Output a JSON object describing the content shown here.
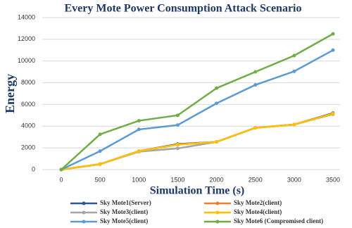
{
  "chart_data": {
    "type": "line",
    "title": "Every Mote Power Consumption Attack Scenario",
    "x_label": "Simulation Time (s)",
    "y_label": "Energy",
    "x": [
      0,
      500,
      1000,
      1500,
      2000,
      2500,
      3000,
      3500
    ],
    "series": [
      {
        "name": "Sky Mote1(Server)",
        "color": "#2f5597",
        "values": [
          0,
          500,
          1700,
          2350,
          2550,
          3850,
          4150,
          5200
        ]
      },
      {
        "name": "Sky Mote2(client)",
        "color": "#ed7d31",
        "values": [
          0,
          500,
          1700,
          2300,
          2550,
          3850,
          4150,
          5150
        ]
      },
      {
        "name": "Sky Mote3(client)",
        "color": "#a5a5a5",
        "values": [
          0,
          500,
          1650,
          1950,
          2550,
          3850,
          4150,
          5100
        ]
      },
      {
        "name": "Sky Mote4(client)",
        "color": "#ffc000",
        "values": [
          0,
          500,
          1700,
          2300,
          2550,
          3850,
          4150,
          5150
        ]
      },
      {
        "name": "Sky Mote5(client)",
        "color": "#5b9bd5",
        "values": [
          0,
          1700,
          3700,
          4100,
          6100,
          7800,
          9050,
          11000
        ]
      },
      {
        "name": "Sky Mote6 (Compromised client)",
        "color": "#70ad47",
        "values": [
          0,
          3250,
          4500,
          5000,
          7500,
          9000,
          10500,
          12500
        ]
      }
    ],
    "xlim": [
      0,
      3500
    ],
    "xticks": [
      0,
      500,
      1000,
      1500,
      2000,
      2500,
      3000,
      3500
    ],
    "ylim": [
      0,
      14000
    ],
    "yticks": [
      0,
      2000,
      4000,
      6000,
      8000,
      10000,
      12000,
      14000
    ],
    "grid": true
  }
}
